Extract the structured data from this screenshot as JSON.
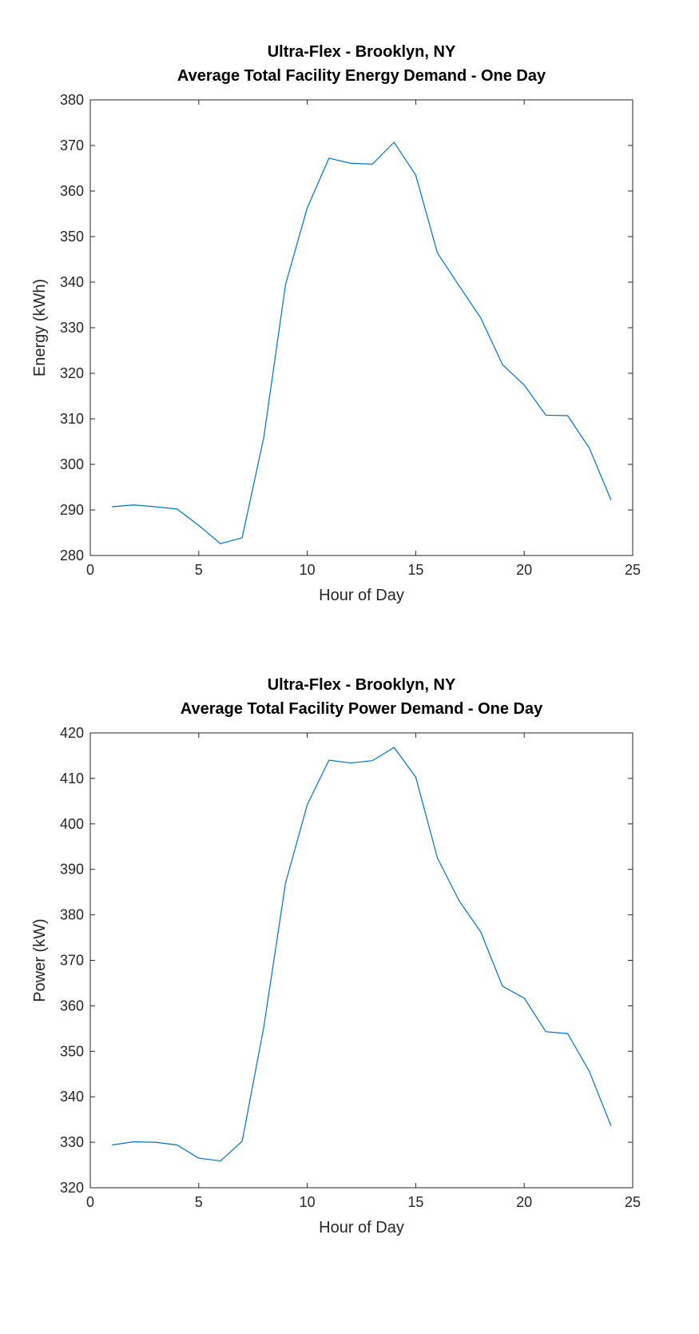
{
  "colors": {
    "line": "#0072BD",
    "axis": "#262626",
    "background": "#ffffff"
  },
  "chart_data": [
    {
      "type": "line",
      "title": [
        "Ultra-Flex - Brooklyn, NY",
        "Average Total Facility Energy Demand - One Day"
      ],
      "xlabel": "Hour of Day",
      "ylabel": "Energy (kWh)",
      "xlim": [
        0,
        25
      ],
      "ylim": [
        280,
        380
      ],
      "xticks": [
        0,
        5,
        10,
        15,
        20,
        25
      ],
      "yticks": [
        280,
        290,
        300,
        310,
        320,
        330,
        340,
        350,
        360,
        370,
        380
      ],
      "grid": false,
      "series": [
        {
          "x": [
            1,
            2,
            3,
            4,
            5,
            6,
            7,
            8,
            9,
            10,
            11,
            12,
            13,
            14,
            15,
            16,
            17,
            18,
            19,
            20,
            21,
            22,
            23,
            24
          ],
          "values": [
            290.7,
            291.1,
            290.7,
            290.2,
            286.6,
            282.6,
            283.9,
            306.0,
            339.5,
            356.3,
            367.2,
            366.1,
            365.9,
            370.7,
            363.5,
            346.4,
            339.2,
            332.1,
            321.9,
            317.4,
            310.8,
            310.7,
            303.6,
            292.2
          ]
        }
      ]
    },
    {
      "type": "line",
      "title": [
        "Ultra-Flex - Brooklyn, NY",
        "Average Total Facility Power Demand - One Day"
      ],
      "xlabel": "Hour of Day",
      "ylabel": "Power (kW)",
      "xlim": [
        0,
        25
      ],
      "ylim": [
        320,
        420
      ],
      "xticks": [
        0,
        5,
        10,
        15,
        20,
        25
      ],
      "yticks": [
        320,
        330,
        340,
        350,
        360,
        370,
        380,
        390,
        400,
        410,
        420
      ],
      "grid": false,
      "series": [
        {
          "x": [
            1,
            2,
            3,
            4,
            5,
            6,
            7,
            8,
            9,
            10,
            11,
            12,
            13,
            14,
            15,
            16,
            17,
            18,
            19,
            20,
            21,
            22,
            23,
            24
          ],
          "values": [
            329.4,
            330.1,
            330.0,
            329.4,
            326.5,
            325.9,
            330.2,
            355.4,
            387.0,
            404.2,
            414.0,
            413.4,
            413.9,
            416.8,
            410.3,
            392.5,
            383.1,
            376.2,
            364.3,
            361.7,
            354.3,
            353.9,
            345.6,
            333.6
          ]
        }
      ]
    }
  ]
}
